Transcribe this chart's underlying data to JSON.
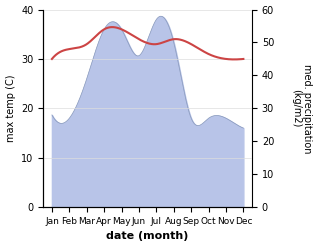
{
  "months": [
    "Jan",
    "Feb",
    "Mar",
    "Apr",
    "May",
    "Jun",
    "Jul",
    "Aug",
    "Sep",
    "Oct",
    "Nov",
    "Dec"
  ],
  "temperature": [
    30,
    32,
    33,
    36,
    36,
    34,
    33,
    34,
    33,
    31,
    30,
    30
  ],
  "precipitation": [
    28,
    27,
    39,
    54,
    54,
    46,
    57,
    50,
    27,
    27,
    27,
    24
  ],
  "temp_color": "#cc4444",
  "precip_fill_color": "#b8c4e8",
  "precip_line_color": "#8899bb",
  "xlabel": "date (month)",
  "ylabel_left": "max temp (C)",
  "ylabel_right": "med. precipitation\n(kg/m2)",
  "ylim_left": [
    0,
    40
  ],
  "ylim_right": [
    0,
    60
  ],
  "yticks_left": [
    0,
    10,
    20,
    30,
    40
  ],
  "yticks_right": [
    0,
    10,
    20,
    30,
    40,
    50,
    60
  ]
}
